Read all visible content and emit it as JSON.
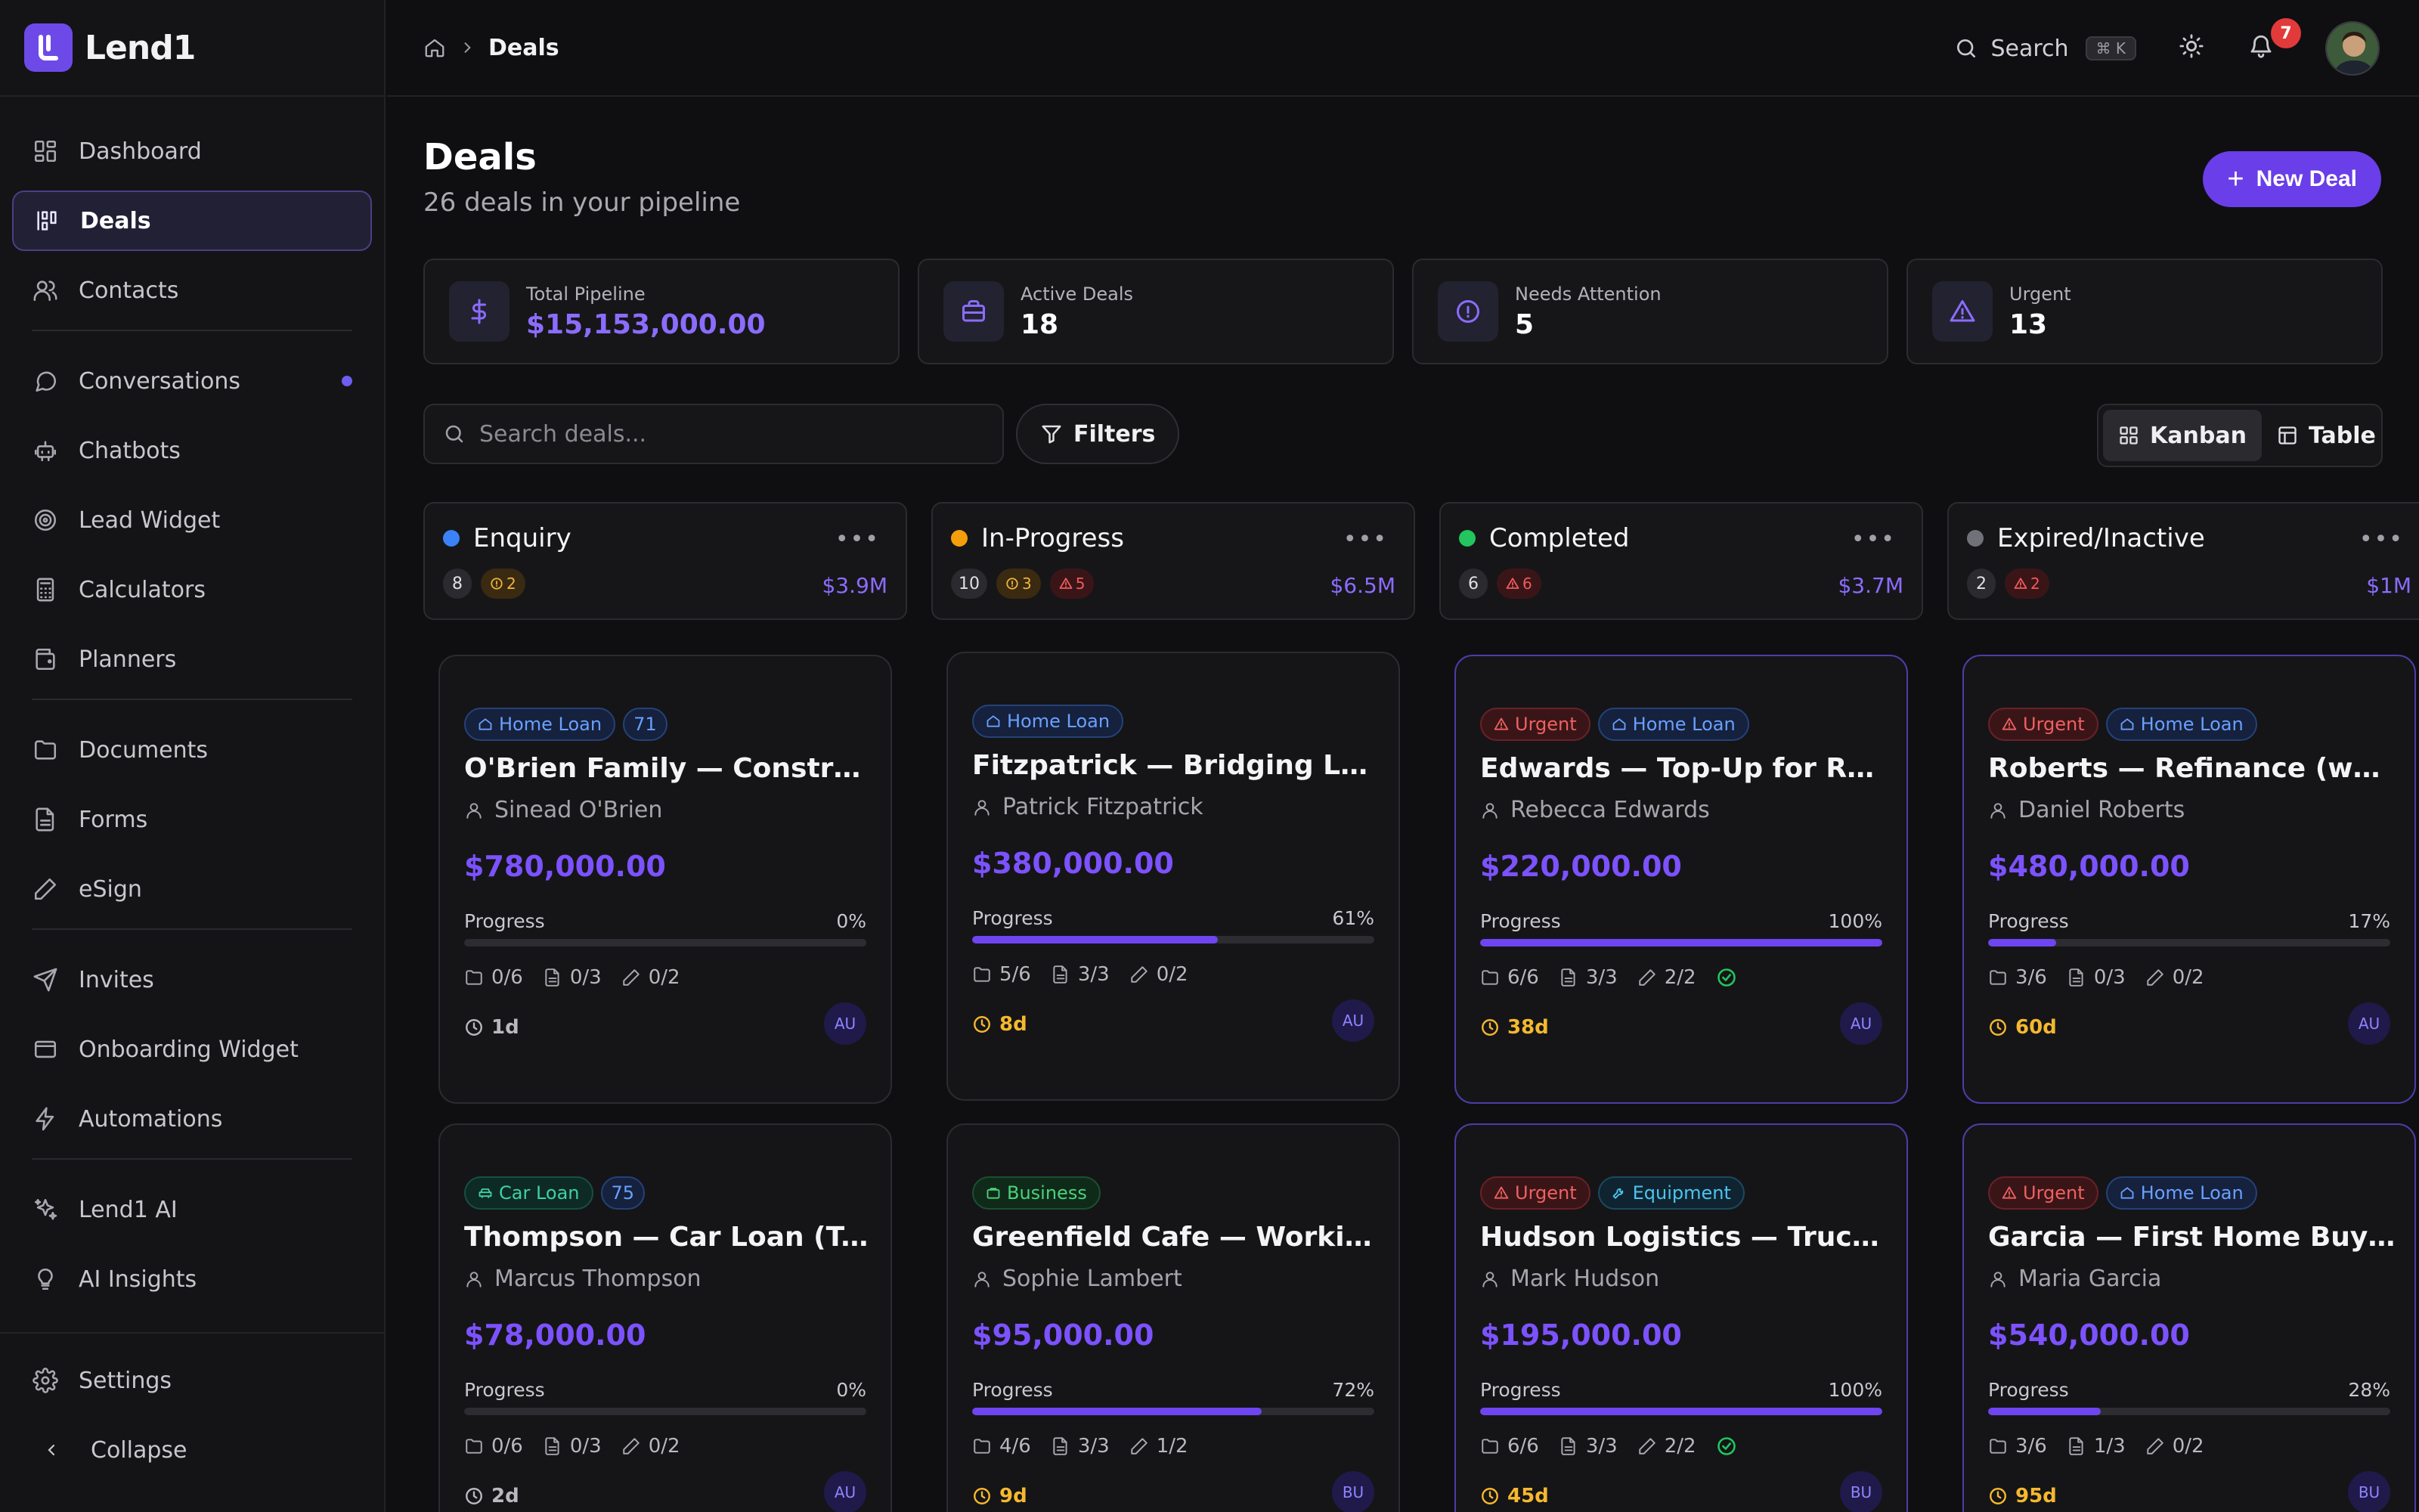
{
  "app": {
    "name": "Lend1"
  },
  "sidebar": {
    "items": [
      {
        "label": "Dashboard"
      },
      {
        "label": "Deals"
      },
      {
        "label": "Contacts"
      },
      {
        "label": "Conversations"
      },
      {
        "label": "Chatbots"
      },
      {
        "label": "Lead Widget"
      },
      {
        "label": "Calculators"
      },
      {
        "label": "Planners"
      },
      {
        "label": "Documents"
      },
      {
        "label": "Forms"
      },
      {
        "label": "eSign"
      },
      {
        "label": "Invites"
      },
      {
        "label": "Onboarding Widget"
      },
      {
        "label": "Automations"
      },
      {
        "label": "Lend1 AI"
      },
      {
        "label": "AI Insights"
      }
    ],
    "settings": "Settings",
    "collapse": "Collapse"
  },
  "breadcrumb": {
    "current": "Deals"
  },
  "topbar": {
    "search_label": "Search",
    "shortcut": "⌘ K",
    "notifications": "7"
  },
  "page": {
    "title": "Deals",
    "subtitle": "26 deals in your pipeline",
    "new_deal": "New Deal"
  },
  "stats": [
    {
      "label": "Total Pipeline",
      "value": "$15,153,000.00"
    },
    {
      "label": "Active Deals",
      "value": "18"
    },
    {
      "label": "Needs Attention",
      "value": "5"
    },
    {
      "label": "Urgent",
      "value": "13"
    }
  ],
  "toolbar": {
    "search_placeholder": "Search deals...",
    "filters": "Filters",
    "kanban": "Kanban",
    "table": "Table"
  },
  "columns": [
    {
      "title": "Enquiry",
      "count": "8",
      "warn": "2",
      "amount": "$3.9M",
      "color": "#3b82f6"
    },
    {
      "title": "In-Progress",
      "count": "10",
      "warn": "3",
      "err": "5",
      "amount": "$6.5M",
      "color": "#f59e0b"
    },
    {
      "title": "Completed",
      "count": "6",
      "err": "6",
      "amount": "$3.7M",
      "color": "#22c55e"
    },
    {
      "title": "Expired/Inactive",
      "count": "2",
      "err": "2",
      "amount": "$1M",
      "color": "#71717a"
    }
  ],
  "cards": [
    {
      "tags": [
        {
          "type": "home",
          "label": "Home Loan"
        },
        {
          "type": "num",
          "label": "71"
        }
      ],
      "title": "O'Brien Family — Construction L...",
      "person": "Sinead O'Brien",
      "amount": "$780,000.00",
      "progress_label": "Progress",
      "progress": "0%",
      "progress_value": 0,
      "counts": [
        "0/6",
        "0/3",
        "0/2"
      ],
      "days": "1d",
      "days_color": "#b8b8be",
      "owner": "AU"
    },
    {
      "tags": [
        {
          "type": "home",
          "label": "Home Loan"
        }
      ],
      "title": "Fitzpatrick — Bridging Loan",
      "person": "Patrick Fitzpatrick",
      "amount": "$380,000.00",
      "progress_label": "Progress",
      "progress": "61%",
      "progress_value": 61,
      "counts": [
        "5/6",
        "3/3",
        "0/2"
      ],
      "days": "8d",
      "days_color": "#f5b82e",
      "owner": "AU"
    },
    {
      "tags": [
        {
          "type": "urg",
          "label": "Urgent"
        },
        {
          "type": "home",
          "label": "Home Loan"
        }
      ],
      "title": "Edwards — Top-Up for Renovati...",
      "person": "Rebecca Edwards",
      "amount": "$220,000.00",
      "progress_label": "Progress",
      "progress": "100%",
      "progress_value": 100,
      "counts": [
        "6/6",
        "3/3",
        "2/2"
      ],
      "done": true,
      "days": "38d",
      "days_color": "#f5b82e",
      "owner": "AU"
    },
    {
      "tags": [
        {
          "type": "urg",
          "label": "Urgent"
        },
        {
          "type": "home",
          "label": "Home Loan"
        }
      ],
      "title": "Roberts — Refinance (went else...",
      "person": "Daniel Roberts",
      "amount": "$480,000.00",
      "progress_label": "Progress",
      "progress": "17%",
      "progress_value": 17,
      "counts": [
        "3/6",
        "0/3",
        "0/2"
      ],
      "days": "60d",
      "days_color": "#f5b82e",
      "owner": "AU"
    },
    {
      "tags": [
        {
          "type": "car",
          "label": "Car Loan"
        },
        {
          "type": "num",
          "label": "75"
        }
      ],
      "title": "Thompson — Car Loan (Tesla M...",
      "person": "Marcus Thompson",
      "amount": "$78,000.00",
      "progress_label": "Progress",
      "progress": "0%",
      "progress_value": 0,
      "counts": [
        "0/6",
        "0/3",
        "0/2"
      ],
      "days": "2d",
      "days_color": "#b8b8be",
      "owner": "AU"
    },
    {
      "tags": [
        {
          "type": "biz",
          "label": "Business"
        }
      ],
      "title": "Greenfield Cafe — Working Cap...",
      "person": "Sophie Lambert",
      "amount": "$95,000.00",
      "progress_label": "Progress",
      "progress": "72%",
      "progress_value": 72,
      "counts": [
        "4/6",
        "3/3",
        "1/2"
      ],
      "days": "9d",
      "days_color": "#f5b82e",
      "owner": "BU"
    },
    {
      "tags": [
        {
          "type": "urg",
          "label": "Urgent"
        },
        {
          "type": "equip",
          "label": "Equipment"
        }
      ],
      "title": "Hudson Logistics — Truck Finan...",
      "person": "Mark Hudson",
      "amount": "$195,000.00",
      "progress_label": "Progress",
      "progress": "100%",
      "progress_value": 100,
      "counts": [
        "6/6",
        "3/3",
        "2/2"
      ],
      "done": true,
      "days": "45d",
      "days_color": "#f5b82e",
      "owner": "BU"
    },
    {
      "tags": [
        {
          "type": "urg",
          "label": "Urgent"
        },
        {
          "type": "home",
          "label": "Home Loan"
        }
      ],
      "title": "Garcia — First Home Buyer (dec...",
      "person": "Maria Garcia",
      "amount": "$540,000.00",
      "progress_label": "Progress",
      "progress": "28%",
      "progress_value": 28,
      "counts": [
        "3/6",
        "1/3",
        "0/2"
      ],
      "days": "95d",
      "days_color": "#f5b82e",
      "owner": "BU"
    }
  ]
}
